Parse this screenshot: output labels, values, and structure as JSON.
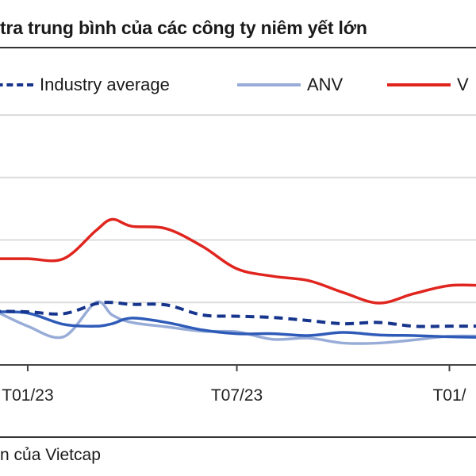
{
  "title": "tra trung bình của các công ty niêm yết lớn",
  "source": "n của Vietcap",
  "legend": [
    {
      "label": "Industry average",
      "style": "dashed",
      "color": "#17358c"
    },
    {
      "label": "ANV",
      "style": "solid",
      "color": "#98acd8"
    },
    {
      "label": "V",
      "style": "solid",
      "color": "#e0251f"
    }
  ],
  "chart_data": {
    "type": "line",
    "title": "tra trung bình của các công ty niêm yết lớn",
    "xlabel": "",
    "ylabel": "",
    "x_ticks": [
      "T01/23",
      "T07/23",
      "T01/"
    ],
    "x_tick_dates": [
      "2023-01-01",
      "2023-07-01",
      "2024-01-01"
    ],
    "xlim": [
      "2022-12-08",
      "2024-01-24"
    ],
    "ylim": [
      0,
      4
    ],
    "y_gridlines": [
      1,
      2,
      3,
      4
    ],
    "y_tick_labels_visible": false,
    "grid": true,
    "legend_position": "top",
    "x": [
      "2022-12-01",
      "2023-01-01",
      "2023-02-01",
      "2023-03-01",
      "2023-03-15",
      "2023-04-01",
      "2023-05-01",
      "2023-06-01",
      "2023-07-01",
      "2023-08-01",
      "2023-09-01",
      "2023-10-01",
      "2023-11-01",
      "2023-12-01",
      "2024-01-01",
      "2024-02-01"
    ],
    "series": [
      {
        "name": "Industry average",
        "color": "#17358c",
        "dash": true,
        "values": [
          0.86,
          0.85,
          0.82,
          0.98,
          1.0,
          0.97,
          0.96,
          0.8,
          0.78,
          0.76,
          0.71,
          0.66,
          0.68,
          0.62,
          0.62,
          0.62
        ]
      },
      {
        "name": "ANV",
        "color": "#98acd8",
        "values": [
          0.89,
          0.62,
          0.45,
          1.0,
          0.8,
          0.68,
          0.61,
          0.54,
          0.53,
          0.41,
          0.43,
          0.35,
          0.35,
          0.4,
          0.46,
          0.46
        ]
      },
      {
        "color": "#2f5bb8",
        "values": [
          0.85,
          0.83,
          0.65,
          0.62,
          0.66,
          0.75,
          0.68,
          0.56,
          0.5,
          0.5,
          0.47,
          0.52,
          0.48,
          0.47,
          0.45,
          0.44
        ]
      },
      {
        "name": "V",
        "color": "#e0251f",
        "values": [
          1.7,
          1.7,
          1.7,
          2.15,
          2.33,
          2.22,
          2.18,
          1.9,
          1.54,
          1.42,
          1.35,
          1.16,
          0.99,
          1.14,
          1.27,
          1.27
        ]
      }
    ]
  }
}
